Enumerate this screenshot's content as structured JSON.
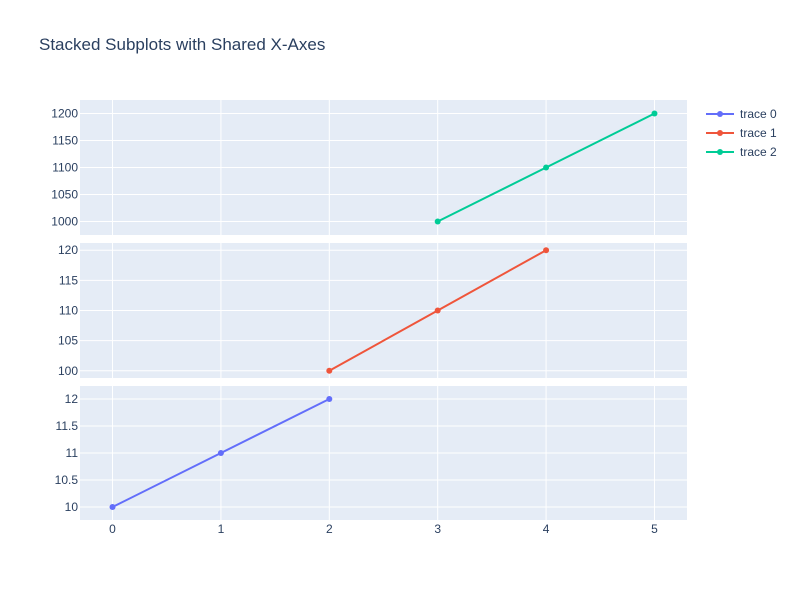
{
  "chart_data": {
    "type": "line",
    "title": "Stacked Subplots with Shared X-Axes",
    "shared_x": {
      "range": [
        -0.3,
        5.3
      ],
      "ticks": [
        0,
        1,
        2,
        3,
        4,
        5
      ]
    },
    "background_color": "#e5ecf6",
    "grid": true,
    "legend_position": "top-right",
    "subplots": [
      {
        "position": "top",
        "ylim": [
          975,
          1225
        ],
        "yticks": [
          1000,
          1050,
          1100,
          1150,
          1200
        ],
        "ytick_labels": [
          "1000",
          "1050",
          "1100",
          "1150",
          "1200"
        ],
        "series_index": 2
      },
      {
        "position": "middle",
        "ylim": [
          98.8,
          121.2
        ],
        "yticks": [
          100,
          105,
          110,
          115,
          120
        ],
        "ytick_labels": [
          "100",
          "105",
          "110",
          "115",
          "120"
        ],
        "series_index": 1
      },
      {
        "position": "bottom",
        "ylim": [
          9.76,
          12.24
        ],
        "yticks": [
          10,
          10.5,
          11,
          11.5,
          12
        ],
        "ytick_labels": [
          "10",
          "10.5",
          "11",
          "11.5",
          "12"
        ],
        "series_index": 0
      }
    ],
    "series": [
      {
        "name": "trace 0",
        "color": "#636efa",
        "x": [
          0,
          1,
          2
        ],
        "y": [
          10,
          11,
          12
        ]
      },
      {
        "name": "trace 1",
        "color": "#ef553b",
        "x": [
          2,
          3,
          4
        ],
        "y": [
          100,
          110,
          120
        ]
      },
      {
        "name": "trace 2",
        "color": "#00cc96",
        "x": [
          3,
          4,
          5
        ],
        "y": [
          1000,
          1100,
          1200
        ]
      }
    ]
  }
}
